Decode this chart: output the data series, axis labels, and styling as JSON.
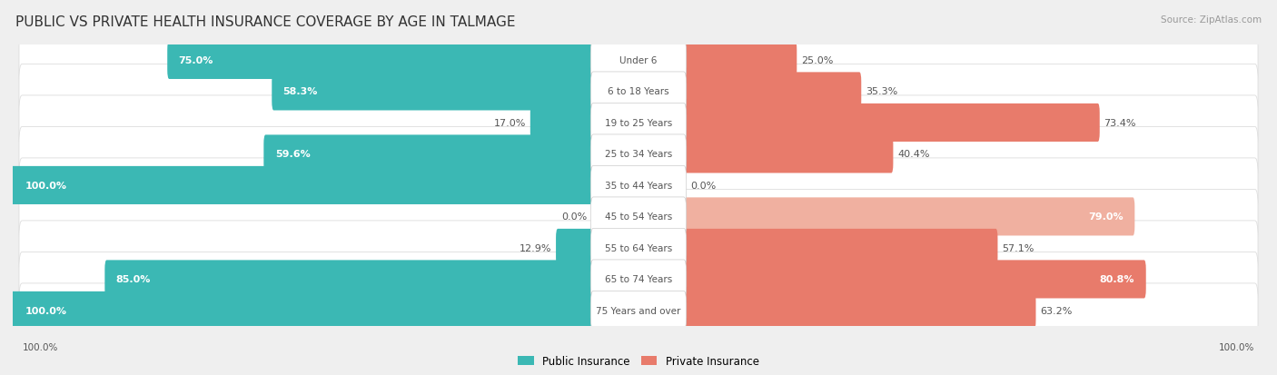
{
  "title": "PUBLIC VS PRIVATE HEALTH INSURANCE COVERAGE BY AGE IN TALMAGE",
  "source": "Source: ZipAtlas.com",
  "categories": [
    "Under 6",
    "6 to 18 Years",
    "19 to 25 Years",
    "25 to 34 Years",
    "35 to 44 Years",
    "45 to 54 Years",
    "55 to 64 Years",
    "65 to 74 Years",
    "75 Years and over"
  ],
  "public_values": [
    75.0,
    58.3,
    17.0,
    59.6,
    100.0,
    0.0,
    12.9,
    85.0,
    100.0
  ],
  "private_values": [
    25.0,
    35.3,
    73.4,
    40.4,
    0.0,
    79.0,
    57.1,
    80.8,
    63.2
  ],
  "public_color": "#3bb8b4",
  "public_color_light": "#8ed0cc",
  "private_color": "#e87b6b",
  "private_color_light": "#f0b0a0",
  "background_color": "#efefef",
  "row_bg_odd": "#f8f8f8",
  "row_bg_even": "#ffffff",
  "bar_height": 0.62,
  "title_fontsize": 11,
  "source_fontsize": 7.5,
  "label_fontsize": 7.5,
  "value_fontsize": 8,
  "legend_fontsize": 8.5,
  "footer_fontsize": 7.5
}
